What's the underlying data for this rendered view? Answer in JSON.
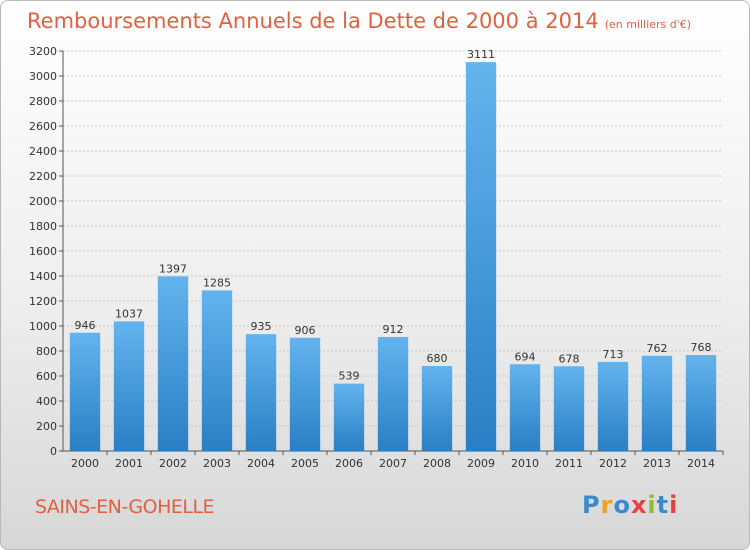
{
  "title": "Remboursements Annuels de la Dette de 2000 à 2014",
  "unit": "(en milliers d'€)",
  "city": "SAINS-EN-GOHELLE",
  "logo": {
    "letters": [
      "P",
      "r",
      "o",
      "x",
      "i",
      "t",
      "i"
    ],
    "colors": [
      "#3a8ad0",
      "#f2a020",
      "#3a8ad0",
      "#e84040",
      "#8cbf30",
      "#3a8ad0",
      "#e84040"
    ]
  },
  "colors": {
    "title": "#e06040",
    "bar_top": "#63b4ee",
    "bar_bottom": "#2a7fc4"
  },
  "chart_data": {
    "type": "bar",
    "categories": [
      "2000",
      "2001",
      "2002",
      "2003",
      "2004",
      "2005",
      "2006",
      "2007",
      "2008",
      "2009",
      "2010",
      "2011",
      "2012",
      "2013",
      "2014"
    ],
    "values": [
      946,
      1037,
      1397,
      1285,
      935,
      906,
      539,
      912,
      680,
      3111,
      694,
      678,
      713,
      762,
      768
    ],
    "ylim": [
      0,
      3200
    ],
    "yticks": [
      0,
      200,
      400,
      600,
      800,
      1000,
      1200,
      1400,
      1600,
      1800,
      2000,
      2200,
      2400,
      2600,
      2800,
      3000,
      3200
    ],
    "grid": true
  }
}
